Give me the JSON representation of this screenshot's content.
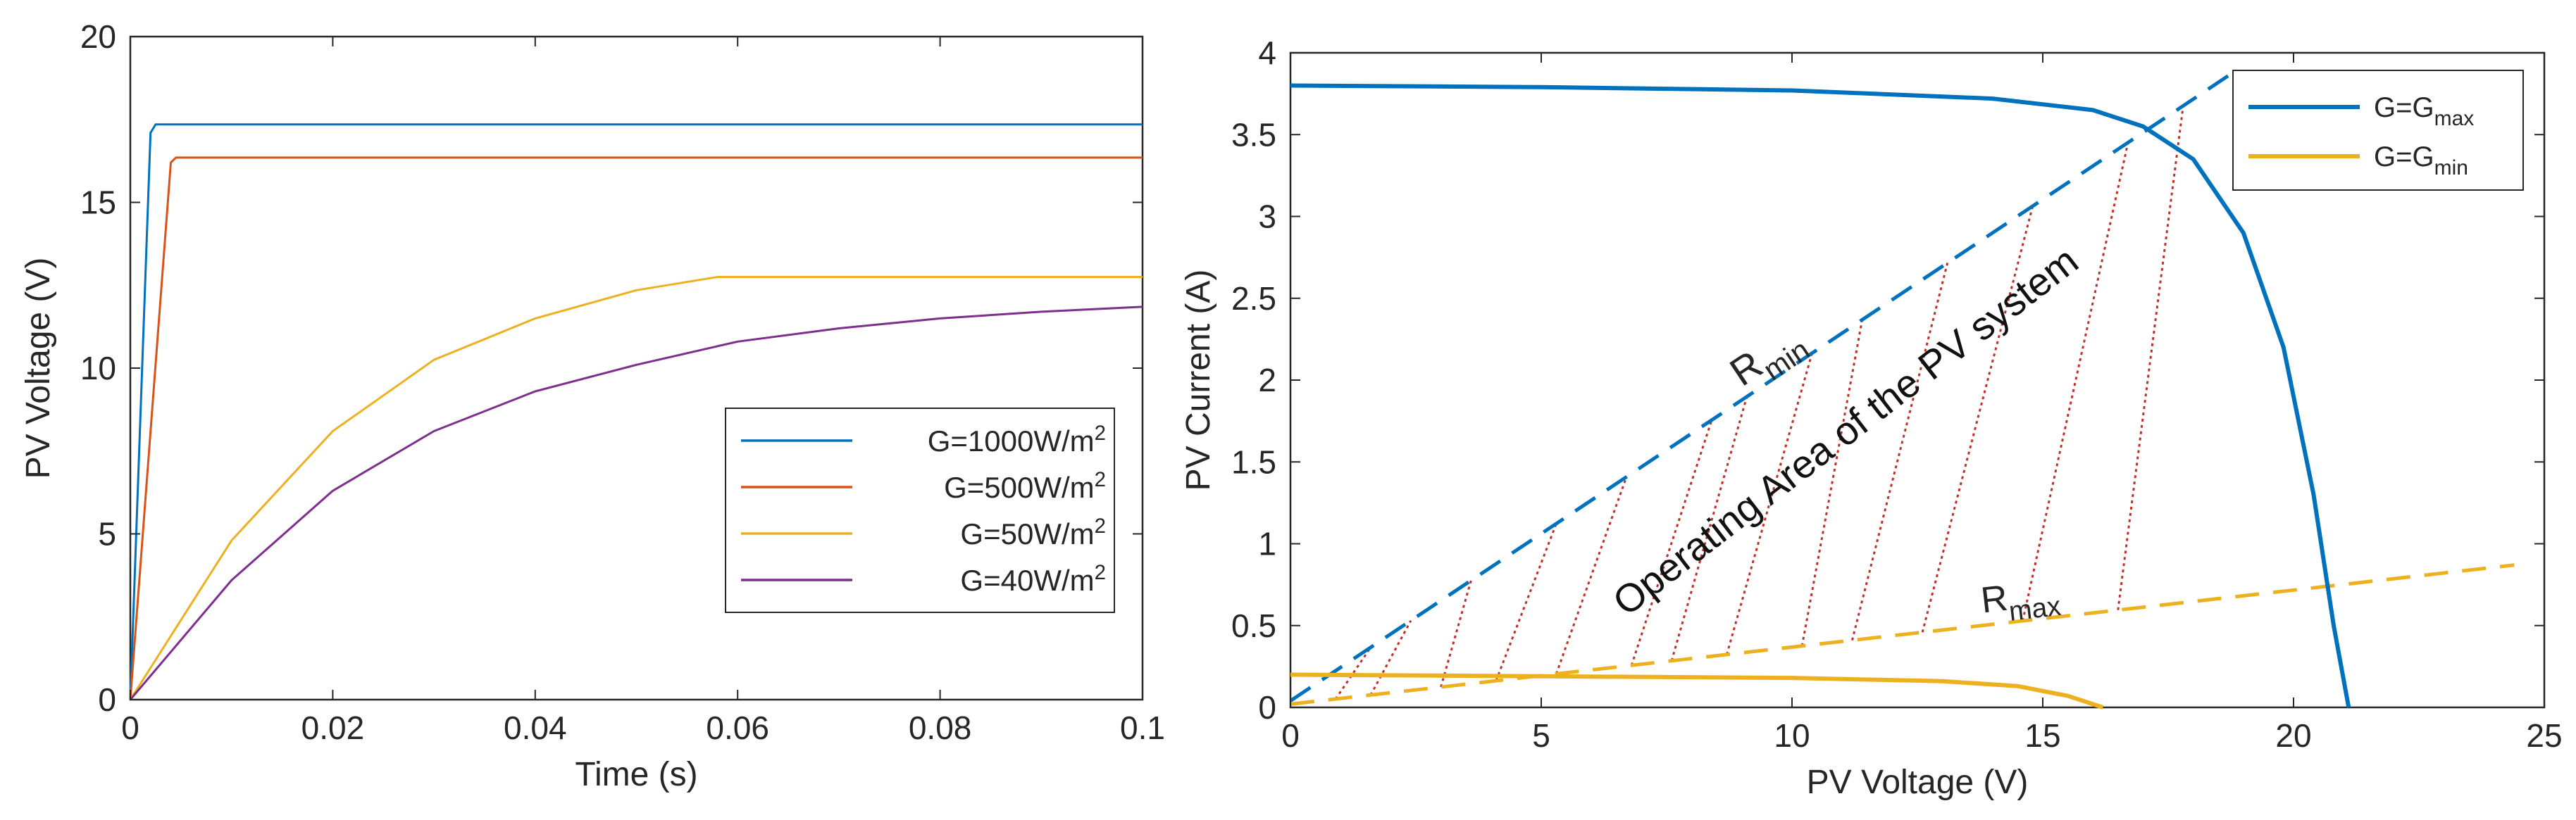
{
  "chart_data": [
    {
      "type": "line",
      "xlabel": "Time (s)",
      "ylabel": "PV Voltage (V)",
      "xlim": [
        0,
        0.1
      ],
      "ylim": [
        0,
        20
      ],
      "xticks": [
        0,
        0.02,
        0.04,
        0.06,
        0.08,
        0.1
      ],
      "xtick_labels": [
        "0",
        "0.02",
        "0.04",
        "0.06",
        "0.08",
        "0.1"
      ],
      "yticks": [
        0,
        5,
        10,
        15,
        20
      ],
      "ytick_labels": [
        "0",
        "5",
        "10",
        "15",
        "20"
      ],
      "grid": false,
      "legend_position": "lower-right",
      "series": [
        {
          "name": "G=1000W/m2",
          "legend": {
            "base": "G=1000W/m",
            "sup": "2"
          },
          "color": "#0072BD",
          "x": [
            0,
            0.002,
            0.0025,
            0.1
          ],
          "y": [
            0,
            17.1,
            17.35,
            17.35
          ]
        },
        {
          "name": "G=500W/m2",
          "legend": {
            "base": "G=500W/m",
            "sup": "2"
          },
          "color": "#D95319",
          "x": [
            0,
            0.004,
            0.0045,
            0.1
          ],
          "y": [
            0,
            16.2,
            16.35,
            16.35
          ]
        },
        {
          "name": "G=50W/m2",
          "legend": {
            "base": "G=50W/m",
            "sup": "2"
          },
          "color": "#EDB120",
          "x": [
            0,
            0.01,
            0.02,
            0.03,
            0.04,
            0.05,
            0.058,
            0.1
          ],
          "y": [
            0,
            4.8,
            8.1,
            10.25,
            11.5,
            12.35,
            12.75,
            12.75
          ]
        },
        {
          "name": "G=40W/m2",
          "legend": {
            "base": "G=40W/m",
            "sup": "2"
          },
          "color": "#7E2F8E",
          "x": [
            0,
            0.01,
            0.02,
            0.03,
            0.04,
            0.05,
            0.06,
            0.07,
            0.08,
            0.09,
            0.1
          ],
          "y": [
            0,
            3.6,
            6.3,
            8.1,
            9.3,
            10.1,
            10.8,
            11.2,
            11.5,
            11.7,
            11.85
          ]
        }
      ]
    },
    {
      "type": "line",
      "xlabel": "PV Voltage (V)",
      "ylabel": "PV Current (A)",
      "xlim": [
        0,
        25
      ],
      "ylim": [
        0,
        4
      ],
      "xticks": [
        0,
        5,
        10,
        15,
        20,
        25
      ],
      "xtick_labels": [
        "0",
        "5",
        "10",
        "15",
        "20",
        "25"
      ],
      "yticks": [
        0,
        0.5,
        1,
        1.5,
        2,
        2.5,
        3,
        3.5,
        4
      ],
      "ytick_labels": [
        "0",
        "0.5",
        "1",
        "1.5",
        "2",
        "2.5",
        "3",
        "3.5",
        "4"
      ],
      "grid": false,
      "legend_position": "top-right",
      "series": [
        {
          "name": "G=Gmax",
          "legend": {
            "base": "G=G",
            "sub": "max"
          },
          "color": "#0072BD",
          "x": [
            0,
            5,
            10,
            14,
            16,
            17,
            18,
            19,
            19.8,
            20.4,
            20.8,
            21.1
          ],
          "y": [
            3.8,
            3.79,
            3.77,
            3.72,
            3.65,
            3.55,
            3.35,
            2.9,
            2.2,
            1.3,
            0.5,
            0
          ]
        },
        {
          "name": "G=Gmin",
          "legend": {
            "base": "G=G",
            "sub": "min"
          },
          "color": "#EDB120",
          "x": [
            0,
            5,
            10,
            13,
            14.5,
            15.5,
            16.2
          ],
          "y": [
            0.2,
            0.19,
            0.18,
            0.16,
            0.13,
            0.07,
            0
          ]
        }
      ],
      "load_lines": [
        {
          "label": {
            "base": "R",
            "sub": "min"
          },
          "color": "#0072BD",
          "x": [
            0,
            18.7
          ],
          "y": [
            0.04,
            3.86
          ]
        },
        {
          "label": {
            "base": "R",
            "sub": "max"
          },
          "color": "#EDB120",
          "x": [
            0,
            24.4
          ],
          "y": [
            0.02,
            0.87
          ]
        }
      ],
      "operating_area_hatch": {
        "color": "#C0302A",
        "lower_x": [
          0.9,
          1.6,
          3.0,
          4.1,
          5.3,
          6.8,
          7.6,
          8.7,
          10.2,
          11.2,
          12.6,
          14.6,
          16.5
        ],
        "upper_x": [
          1.6,
          2.4,
          3.6,
          5.3,
          6.7,
          8.4,
          9.1,
          10.4,
          11.4,
          13.1,
          14.8,
          16.7,
          17.8
        ]
      },
      "annotation": "Operating Area of the PV system"
    }
  ]
}
